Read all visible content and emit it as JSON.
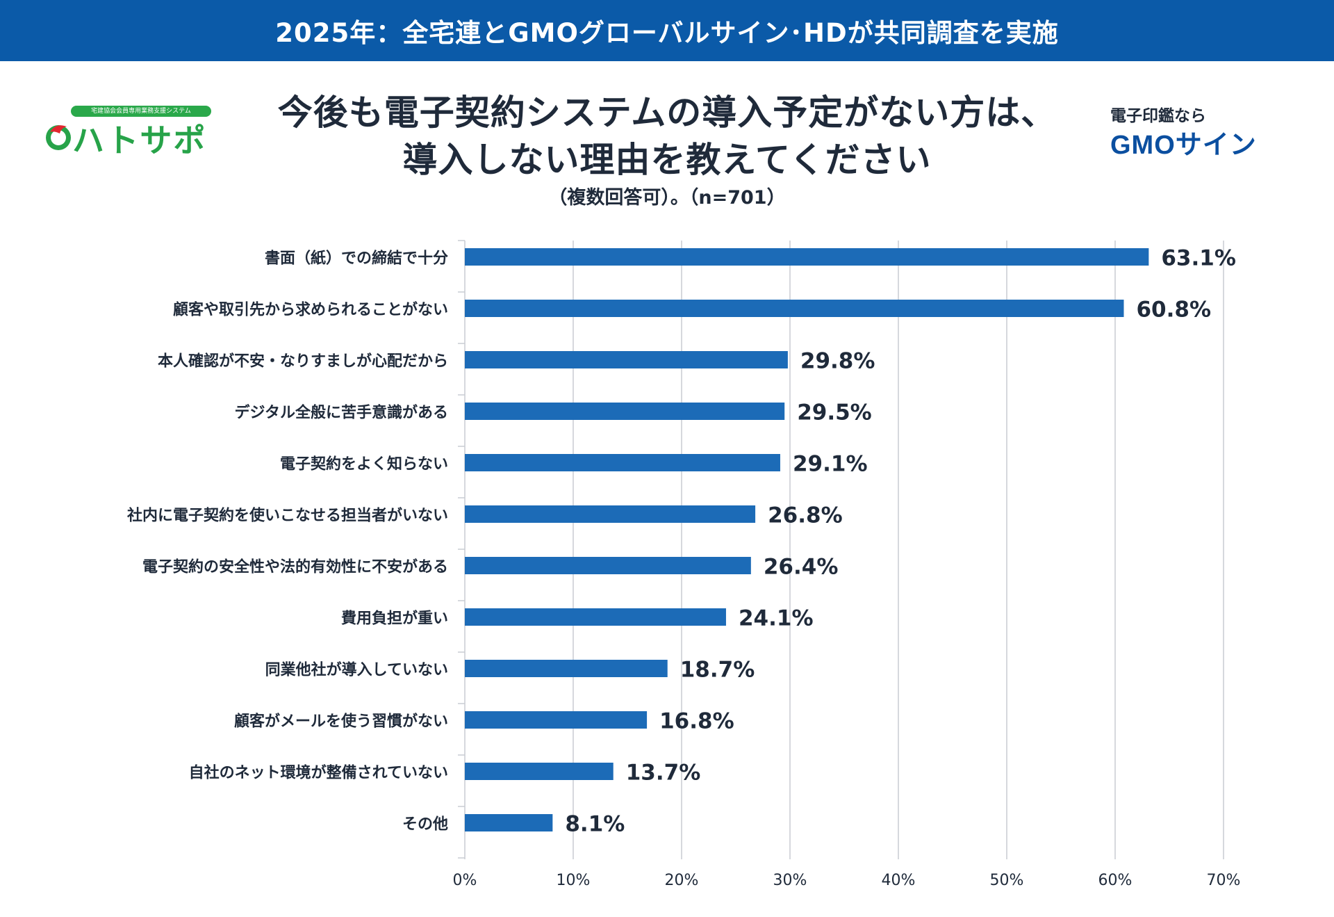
{
  "banner": "2025年：全宅連とGMOグローバルサイン･HDが共同調査を実施",
  "logo_left": {
    "tagline": "宅建協会会員専用業務支援システム",
    "name": "ハトサポ"
  },
  "logo_right": {
    "prefix": "電子印鑑なら",
    "brand": "GMOサイン"
  },
  "colors": {
    "banner": "#0b5aa8",
    "bar": "#1c6bb7",
    "grid": "#c8ccd2",
    "text": "#1f2a3a"
  },
  "chart_data": {
    "type": "bar",
    "orientation": "horizontal",
    "title_line1": "今後も電子契約システムの導入予定がない方は、",
    "title_line2": "導入しない理由を教えてください",
    "subtitle": "（複数回答可）。（n=701）",
    "categories": [
      "書面（紙）での締結で十分",
      "顧客や取引先から求められることがない",
      "本人確認が不安・なりすましが心配だから",
      "デジタル全般に苦手意識がある",
      "電子契約をよく知らない",
      "社内に電子契約を使いこなせる担当者がいない",
      "電子契約の安全性や法的有効性に不安がある",
      "費用負担が重い",
      "同業他社が導入していない",
      "顧客がメールを使う習慣がない",
      "自社のネット環境が整備されていない",
      "その他"
    ],
    "values": [
      63.1,
      60.8,
      29.8,
      29.5,
      29.1,
      26.8,
      26.4,
      24.1,
      18.7,
      16.8,
      13.7,
      8.1
    ],
    "value_labels": [
      "63.1%",
      "60.8%",
      "29.8%",
      "29.5%",
      "29.1%",
      "26.8%",
      "26.4%",
      "24.1%",
      "18.7%",
      "16.8%",
      "13.7%",
      "8.1%"
    ],
    "xlim": [
      0,
      70
    ],
    "xticks": [
      0,
      10,
      20,
      30,
      40,
      50,
      60,
      70
    ],
    "xtick_labels": [
      "0%",
      "10%",
      "20%",
      "30%",
      "40%",
      "50%",
      "60%",
      "70%"
    ],
    "grid": true
  }
}
